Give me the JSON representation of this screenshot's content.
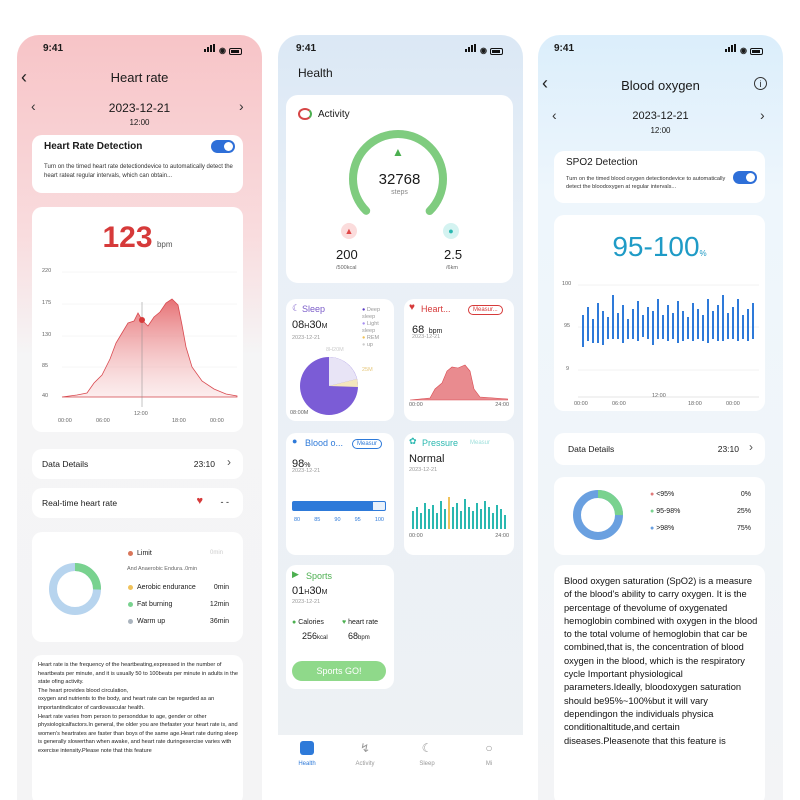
{
  "status_time": "9:41",
  "left": {
    "title": "Heart rate",
    "date": "2023-12-21",
    "time": "12:00",
    "detection_title": "Heart Rate Detection",
    "detection_desc": "Turn on the timed heart rate detectiondevice to automatically detect the heart rateat regular intervals, which can obtain...",
    "value": "123",
    "unit": "bpm",
    "y_ticks": [
      "220",
      "175",
      "130",
      "85",
      "40"
    ],
    "x_ticks": [
      "00:00",
      "06:00",
      "12:00",
      "18:00",
      "00:00"
    ],
    "data_details_label": "Data Details",
    "data_details_value": "23:10",
    "realtime_label": "Real-time heart rate",
    "realtime_value": "- -",
    "zones": [
      {
        "name": "Limit",
        "value": "",
        "sub": "And Anaerobic Endura..0min",
        "color": "#d9765a"
      },
      {
        "name": "Aerobic endurance",
        "value": "0min",
        "color": "#f0c25a"
      },
      {
        "name": "Fat burning",
        "value": "12min",
        "color": "#79d28f"
      },
      {
        "name": "Warm up",
        "value": "36min",
        "color": "#aab4be"
      }
    ],
    "zone_faded": "0min",
    "paragraph": "Heart rate is the frequency of the heartbeating,expressed in the number of heartbeats per minute, and it is usually 50 to 100beats per minute in adults in the state ofing activity.\nThe heart provides blood circulation,\noxygen and nutrients to the body, and heart rate can be regarded as an importantindicator of cardiovascular health.\nHeart rate varies from person to personddue to age, gender or other physiologicalfactors.In general, the older you are thefaster your heart rate is, and women's heartrates are faster than boys of the same age.Heart rate during sleep is generally slowerthan when awake, and heart rate duringexercise varies with exercise intensity.Please note that this feature"
  },
  "middle": {
    "title": "Health",
    "activity_label": "Activity",
    "steps": "32768",
    "steps_unit": "steps",
    "calories": "200",
    "calories_goal": "/500kcal",
    "distance": "2.5",
    "distance_goal": "/6km",
    "sleep_label": "Sleep",
    "sleep_h": "08",
    "sleep_h_unit": "H",
    "sleep_m": "30",
    "sleep_m_unit": "M",
    "sleep_date": "2023-12-21",
    "sleep_legend": [
      "Deep sleep",
      "Light sleep",
      "REM",
      "up"
    ],
    "sleep_faded_1": "8H20M",
    "sleep_faded_2": "25M",
    "sleep_time_label": "08:00M",
    "heart_label": "Heart...",
    "heart_btn": "Measur...",
    "heart_value": "68",
    "heart_unit": "bpm",
    "heart_date": "2023-12-21",
    "heart_x": [
      "00:00",
      "24:00"
    ],
    "blood_label": "Blood o...",
    "blood_btn": "Measur",
    "blood_value": "98",
    "blood_unit": "%",
    "blood_date": "2023-12-21",
    "blood_ticks": [
      "80",
      "85",
      "90",
      "95",
      "100"
    ],
    "pressure_label": "Pressure",
    "pressure_btn": "Measur",
    "pressure_value": "Normal",
    "pressure_date": "2023-12-21",
    "pressure_x": [
      "00:00",
      "24:00"
    ],
    "sports_label": "Sports",
    "sports_h": "01",
    "sports_h_unit": "H",
    "sports_m": "30",
    "sports_m_unit": "M",
    "sports_date": "2023-12-21",
    "sports_cal_label": "Calories",
    "sports_cal": "256",
    "sports_cal_unit": "kcal",
    "sports_hr_label": "heart rate",
    "sports_hr": "68",
    "sports_hr_unit": "bpm",
    "sports_btn": "Sports GO!",
    "nav": [
      "Health",
      "Activity",
      "Sleep",
      "Mi"
    ]
  },
  "right": {
    "title": "Blood oxygen",
    "date": "2023-12-21",
    "time": "12:00",
    "detection_title": "SPO2 Detection",
    "detection_desc": "Turn on the timed blood oxygen detectiondevice to automatically detect the bloodoxygen at regular intervals...",
    "value": "95-100",
    "unit": "%",
    "y_ticks": [
      "100",
      "95",
      "9"
    ],
    "x_ticks": [
      "00:00",
      "06:00",
      "12:00",
      "18:00",
      "00:00"
    ],
    "data_details_label": "Data Details",
    "data_details_value": "23:10",
    "ranges": [
      {
        "name": "<95%",
        "value": "0%",
        "color": "#e07b7b"
      },
      {
        "name": "95-98%",
        "value": "25%",
        "color": "#79d28f"
      },
      {
        "name": ">98%",
        "value": "75%",
        "color": "#6aa0e0"
      }
    ],
    "paragraph": "Blood oxygen saturation (SpO2) is a measure of the blood's ability to carry oxygen. It is the percentage of thevolume of oxygenated hemoglobin combined with oxygen in the blood to the total volume of hemoglobin that car be combined,that is, the concentration of blood oxygen in the blood, which is the respiratory cycle Important physiological parameters.Ideally, bloodoxygen saturation should be95%~100%but it will vary dependingon the individuals physica conditionaltitude,and certain diseases.Pleasenote that this feature is"
  }
}
